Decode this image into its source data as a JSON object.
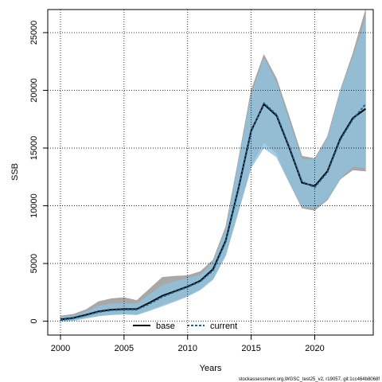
{
  "chart_data": {
    "type": "area",
    "xlabel": "Years",
    "ylabel": "SSB",
    "xlim": [
      1999,
      2024.6
    ],
    "ylim": [
      -1200,
      27000
    ],
    "xticks": [
      2000,
      2005,
      2010,
      2015,
      2020
    ],
    "yticks": [
      0,
      5000,
      10000,
      15000,
      20000,
      25000
    ],
    "grid": true,
    "legend_position": "bottom-center",
    "x": [
      2000,
      2001,
      2002,
      2003,
      2004,
      2005,
      2006,
      2007,
      2008,
      2009,
      2010,
      2011,
      2012,
      2013,
      2014,
      2015,
      2016,
      2017,
      2018,
      2019,
      2020,
      2021,
      2022,
      2023,
      2024
    ],
    "series": [
      {
        "name": "base",
        "color": "#000000",
        "line_style": "solid",
        "band_color": "#999999",
        "values": [
          150,
          280,
          550,
          850,
          1000,
          1050,
          1050,
          1600,
          2200,
          2600,
          3000,
          3500,
          4500,
          7000,
          11500,
          16500,
          18800,
          17800,
          15000,
          12000,
          11700,
          13000,
          15800,
          17600,
          18400
        ],
        "lower": [
          0,
          100,
          300,
          500,
          600,
          650,
          600,
          1000,
          1400,
          1800,
          2200,
          2800,
          3700,
          5800,
          9500,
          13500,
          15500,
          14500,
          12000,
          9800,
          9600,
          10500,
          12300,
          13100,
          13000
        ],
        "upper": [
          450,
          600,
          1000,
          1700,
          1950,
          2050,
          1800,
          2800,
          3800,
          3900,
          3950,
          4300,
          5300,
          8200,
          14000,
          20000,
          23100,
          21000,
          17700,
          14300,
          14100,
          16000,
          20000,
          23200,
          27000
        ]
      },
      {
        "name": "current",
        "color": "#1f5f8b",
        "line_style": "dashed",
        "band_color": "#8fc0dc",
        "values": [
          100,
          250,
          500,
          800,
          950,
          1000,
          1000,
          1500,
          2100,
          2550,
          2950,
          3450,
          4400,
          6900,
          11400,
          16400,
          18900,
          17900,
          15100,
          12100,
          11600,
          12900,
          15700,
          17500,
          18800
        ],
        "lower": [
          0,
          50,
          250,
          450,
          550,
          600,
          550,
          900,
          1300,
          1700,
          2150,
          2700,
          3600,
          5700,
          9500,
          13300,
          15000,
          14200,
          12000,
          9900,
          9800,
          10600,
          12400,
          13400,
          13300
        ],
        "upper": [
          350,
          450,
          800,
          1300,
          1500,
          1550,
          1500,
          2300,
          3100,
          3450,
          3700,
          4000,
          5100,
          7900,
          13800,
          19600,
          22800,
          20600,
          17300,
          14000,
          14000,
          15800,
          19900,
          22900,
          26200
        ]
      }
    ],
    "footnote": "stockassessment.org,WGSC_test25_v2, r19057, git:1cc464b8068f"
  }
}
